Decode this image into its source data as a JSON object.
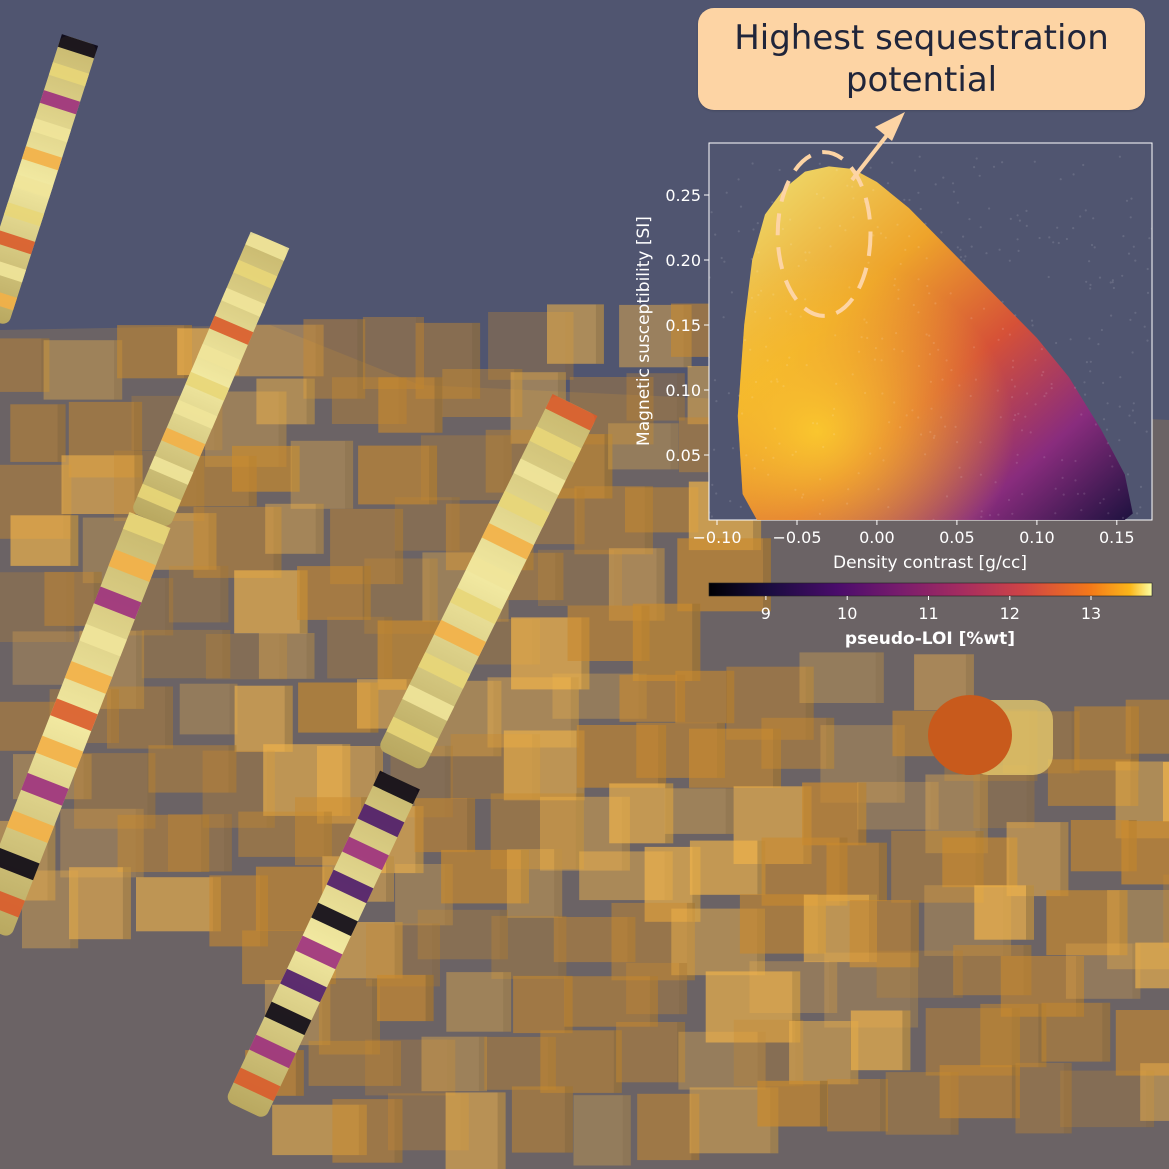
{
  "callout": {
    "line1": "Highest sequestration",
    "line2": "potential"
  },
  "colors": {
    "background": "#505570",
    "callout_fill": "#fdd4a4",
    "annotation": "#fdd4a4",
    "block": "#e7a437",
    "axis_text": "#ffffff"
  },
  "chart_data": {
    "type": "scatter",
    "title": "",
    "xlabel": "Density contrast [g/cc]",
    "ylabel": "Magnetic susceptibility [SI]",
    "xlim": [
      -0.105,
      0.172
    ],
    "ylim": [
      0.0,
      0.29
    ],
    "x_ticks": [
      -0.1,
      -0.05,
      0.0,
      0.05,
      0.1,
      0.15
    ],
    "x_tick_labels": [
      "−0.10",
      "−0.05",
      "0.00",
      "0.05",
      "0.10",
      "0.15"
    ],
    "y_ticks": [
      0.05,
      0.1,
      0.15,
      0.2,
      0.25
    ],
    "y_tick_labels": [
      "0.05",
      "0.10",
      "0.15",
      "0.20",
      "0.25"
    ],
    "grid": false,
    "point_cloud_envelope": {
      "x": [
        -0.087,
        -0.083,
        -0.078,
        -0.07,
        -0.058,
        -0.045,
        -0.03,
        -0.015,
        0.0,
        0.02,
        0.04,
        0.06,
        0.08,
        0.1,
        0.12,
        0.14,
        0.155,
        0.16,
        0.155,
        0.14,
        0.12,
        0.1,
        0.08,
        0.06,
        0.04,
        0.02,
        0.0,
        -0.02,
        -0.04,
        -0.06,
        -0.075,
        -0.084
      ],
      "y": [
        0.08,
        0.15,
        0.2,
        0.235,
        0.255,
        0.268,
        0.272,
        0.27,
        0.26,
        0.24,
        0.215,
        0.19,
        0.165,
        0.14,
        0.11,
        0.07,
        0.035,
        0.005,
        0.0,
        0.0,
        0.0,
        0.0,
        0.0,
        0.0,
        0.0,
        0.0,
        0.0,
        0.0,
        0.0,
        0.0,
        0.0,
        0.02
      ]
    },
    "colorbar": {
      "label": "pseudo-LOI [%wt]",
      "range": [
        8.3,
        13.75
      ],
      "ticks": [
        9,
        10,
        11,
        12,
        13
      ],
      "tick_labels": [
        "9",
        "10",
        "11",
        "12",
        "13"
      ],
      "colormap": "inferno"
    },
    "highlight_region": {
      "shape": "ellipse",
      "center_x": -0.033,
      "center_y": 0.22,
      "x_radius": 0.029,
      "y_radius": 0.063,
      "meaning": "Highest sequestration potential"
    }
  }
}
